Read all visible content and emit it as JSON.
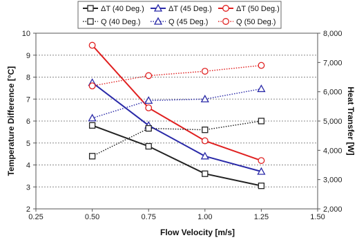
{
  "chart_data": {
    "type": "line",
    "x_axis": {
      "label": "Flow Velocity [m/s]",
      "range": [
        0.25,
        1.5
      ],
      "ticks": [
        "0.25",
        "0.50",
        "0.75",
        "1.00",
        "1.25",
        "1.50"
      ],
      "tick_values": [
        0.25,
        0.5,
        0.75,
        1.0,
        1.25,
        1.5
      ]
    },
    "y_left": {
      "label": "Temperature Difference [°C]",
      "range": [
        2,
        10
      ],
      "ticks": [
        "2",
        "3",
        "4",
        "5",
        "6",
        "7",
        "8",
        "9",
        "10"
      ],
      "tick_values": [
        2,
        3,
        4,
        5,
        6,
        7,
        8,
        9,
        10
      ]
    },
    "y_right": {
      "label": "Heat Transfer [W]",
      "range": [
        2000,
        8000
      ],
      "ticks": [
        "2,000",
        "3,000",
        "4,000",
        "5,000",
        "6,000",
        "7,000",
        "8,000"
      ],
      "tick_values": [
        2000,
        3000,
        4000,
        5000,
        6000,
        7000,
        8000
      ]
    },
    "grid": "horizontal dashed",
    "legend_position": "top",
    "colors": {
      "black": "#222222",
      "blue": "#2a2aa8",
      "red": "#e02020"
    },
    "series": [
      {
        "name": "ΔT (40 Deg.)",
        "axis": "left",
        "style": "solid",
        "marker": "square",
        "color": "black",
        "x": [
          0.5,
          0.75,
          1.0,
          1.25
        ],
        "values": [
          5.8,
          4.85,
          3.6,
          3.05
        ]
      },
      {
        "name": "ΔT (45 Deg.)",
        "axis": "left",
        "style": "solid",
        "marker": "triangle",
        "color": "blue",
        "x": [
          0.5,
          0.75,
          1.0,
          1.25
        ],
        "values": [
          7.75,
          5.8,
          4.4,
          3.7
        ]
      },
      {
        "name": "ΔT (50 Deg.)",
        "axis": "left",
        "style": "solid",
        "marker": "circle",
        "color": "red",
        "x": [
          0.5,
          0.75,
          1.0,
          1.25
        ],
        "values": [
          9.45,
          6.6,
          5.1,
          4.2
        ]
      },
      {
        "name": "Q (40 Deg.)",
        "axis": "right",
        "style": "dotted",
        "marker": "square",
        "color": "black",
        "x": [
          0.5,
          0.75,
          1.0,
          1.25
        ],
        "values": [
          3800,
          4750,
          4700,
          5000
        ]
      },
      {
        "name": "Q (45 Deg.)",
        "axis": "right",
        "style": "dotted",
        "marker": "triangle",
        "color": "blue",
        "x": [
          0.5,
          0.75,
          1.0,
          1.25
        ],
        "values": [
          5100,
          5700,
          5750,
          6100
        ]
      },
      {
        "name": "Q (50 Deg.)",
        "axis": "right",
        "style": "dotted",
        "marker": "circle",
        "color": "red",
        "x": [
          0.5,
          0.75,
          1.0,
          1.25
        ],
        "values": [
          6200,
          6550,
          6700,
          6900
        ]
      }
    ]
  }
}
